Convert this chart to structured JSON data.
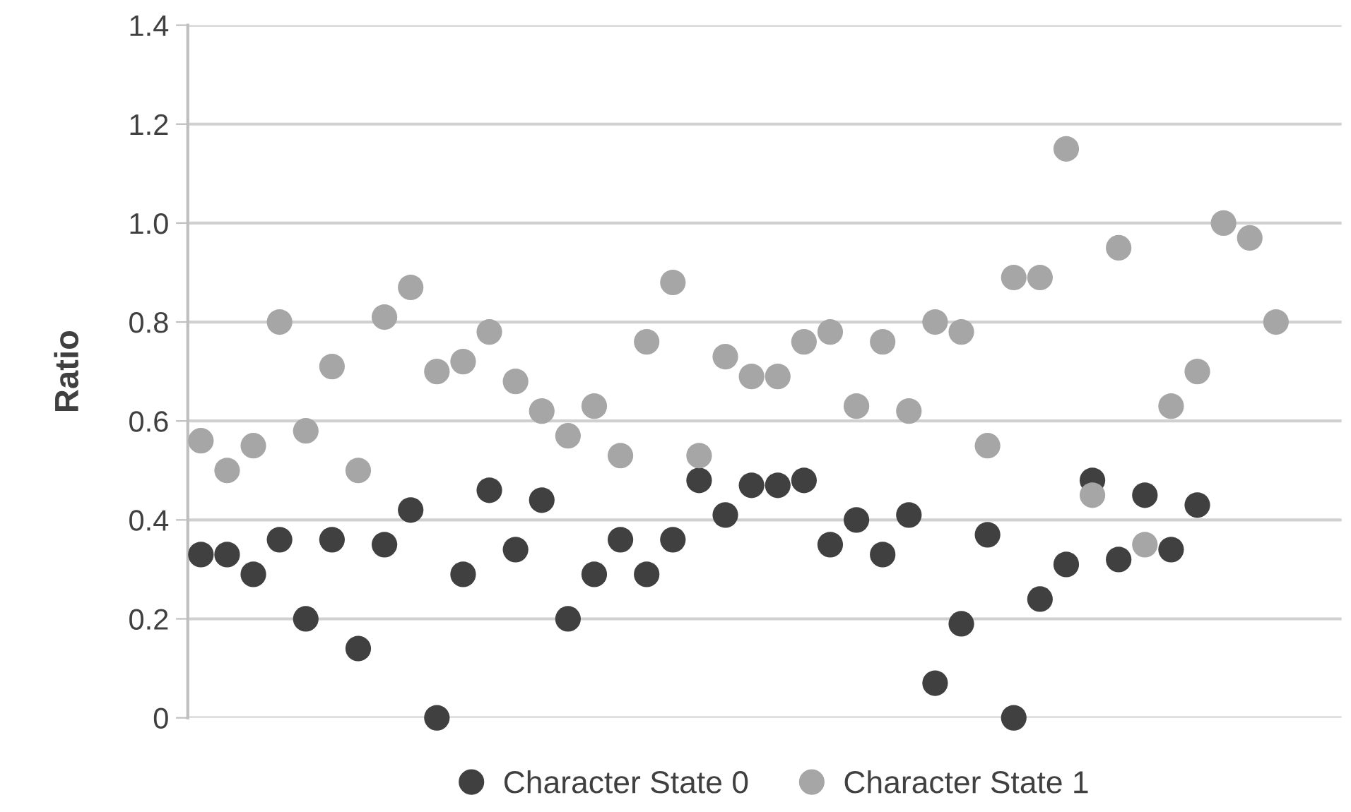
{
  "chart_data": {
    "type": "scatter",
    "ylabel": "Ratio",
    "categories": [
      null,
      null,
      null,
      null,
      null,
      null,
      null,
      null,
      null,
      null,
      null,
      null,
      null,
      null,
      null,
      null,
      null,
      null,
      null,
      null,
      null,
      null,
      null,
      null,
      null,
      null,
      null,
      null,
      null,
      null,
      null,
      null,
      null,
      null,
      null,
      null,
      null,
      null,
      null,
      null,
      null,
      null,
      null,
      null
    ],
    "series": [
      {
        "name": "Character State 0",
        "color": "#404040",
        "values": [
          0.33,
          0.33,
          0.29,
          0.36,
          0.2,
          0.36,
          0.14,
          0.35,
          0.42,
          0,
          0.29,
          0.46,
          0.34,
          0.44,
          0.2,
          0.29,
          0.36,
          0.29,
          0.36,
          0.48,
          0.41,
          0.47,
          0.47,
          0.48,
          0.35,
          0.4,
          0.33,
          0.41,
          0.07,
          0.19,
          0.37,
          0,
          0.24,
          0.31,
          0.48,
          0.32,
          0.45,
          0.34,
          0.43,
          null,
          null,
          null,
          null,
          null
        ]
      },
      {
        "name": "Character State 1",
        "color": "#a6a6a6",
        "values": [
          0.56,
          0.5,
          0.55,
          0.8,
          0.58,
          0.71,
          0.5,
          0.81,
          0.87,
          0.7,
          0.72,
          0.78,
          0.68,
          0.62,
          0.57,
          0.63,
          0.53,
          0.76,
          0.88,
          0.53,
          0.73,
          0.69,
          0.69,
          0.76,
          0.78,
          0.63,
          0.76,
          0.62,
          0.8,
          0.78,
          0.55,
          0.89,
          0.89,
          1.15,
          0.45,
          0.95,
          0.35,
          0.63,
          0.7,
          1.0,
          0.97,
          0.8,
          null,
          null
        ]
      }
    ],
    "ylim": [
      0,
      1.4
    ],
    "yticks": [
      0,
      0.2,
      0.4,
      0.6,
      0.8,
      {
        "value": 1,
        "label": "1.0"
      },
      1.2,
      1.4
    ],
    "grid": "y",
    "legend": "bottom",
    "marker": "circle",
    "tick_labels": "y"
  }
}
